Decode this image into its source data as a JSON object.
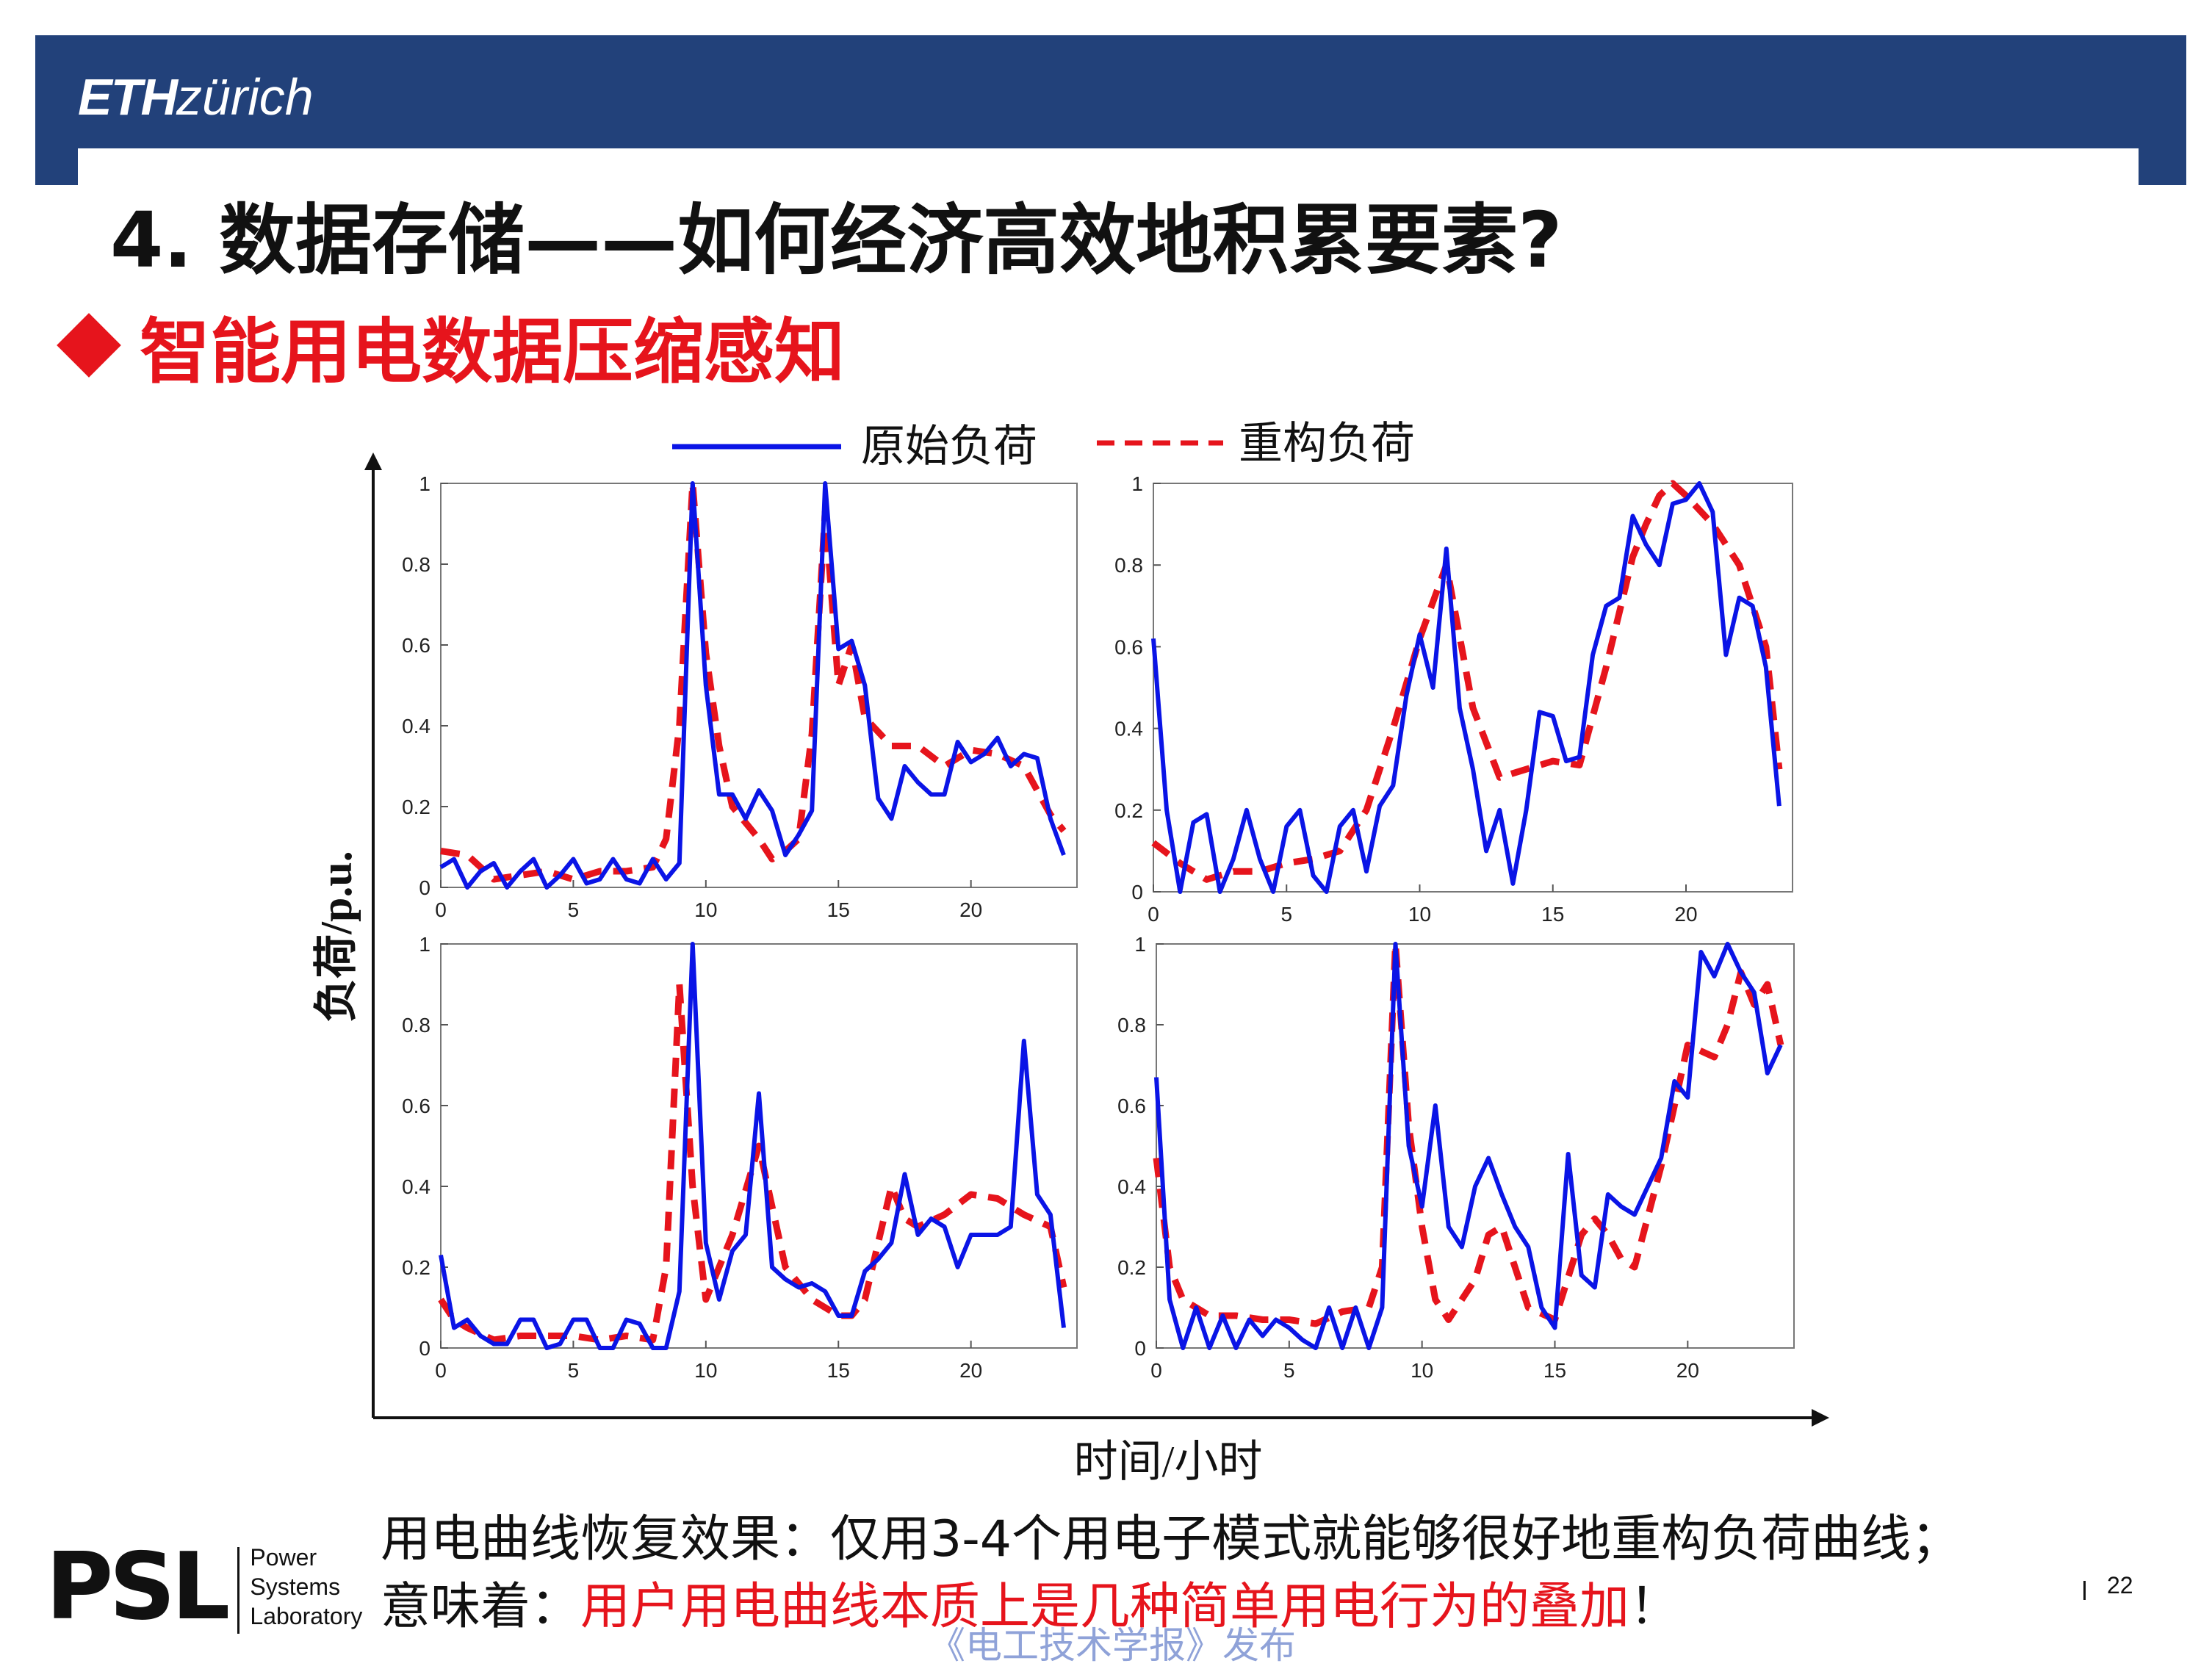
{
  "header": {
    "logo_bold": "ETH",
    "logo_rest": "zürich"
  },
  "slide": {
    "title": "4. 数据存储——如何经济高效地积累要素?",
    "bullet": "智能用电数据压缩感知",
    "page_number": "22"
  },
  "conclusion": {
    "line1": "用电曲线恢复效果：仅用3-4个用电子模式就能够很好地重构负荷曲线；",
    "line2_prefix": "意味着：",
    "line2_highlight": "用户用电曲线本质上是几种简单用电行为的叠加",
    "line2_suffix": "！"
  },
  "psl_logo": {
    "mark": "PSL",
    "line1": "Power",
    "line2": "Systems",
    "line3": "Laboratory"
  },
  "watermark": "《电工技术学报》发布",
  "colors": {
    "header_blue": "#22417a",
    "accent_red": "#e6141c",
    "original_series": "#0a14e6",
    "reconstructed_series": "#e6141c"
  },
  "chart_data": {
    "type": "line",
    "xlabel": "时间/小时",
    "ylabel": "负荷/p.u.",
    "legend": {
      "placement": "top-center",
      "entries": [
        "原始负荷",
        "重构负荷"
      ]
    },
    "grid": false,
    "panels": [
      {
        "xlim": [
          0,
          24
        ],
        "ylim": [
          0,
          1
        ],
        "xticks": [
          0,
          5,
          10,
          15,
          20
        ],
        "yticks": [
          0,
          0.2,
          0.4,
          0.6,
          0.8,
          1
        ],
        "series": [
          {
            "name": "原始负荷",
            "style": "solid",
            "x": [
              0,
              0.5,
              1,
              1.5,
              2,
              2.5,
              3,
              3.5,
              4,
              4.5,
              5,
              5.5,
              6,
              6.5,
              7,
              7.5,
              8,
              8.5,
              9,
              9.5,
              10,
              10.5,
              11,
              11.5,
              12,
              12.5,
              13,
              13.5,
              14,
              14.5,
              15,
              15.5,
              16,
              16.5,
              17,
              17.5,
              18,
              18.5,
              19,
              19.5,
              20,
              20.5,
              21,
              21.5,
              22,
              22.5,
              23,
              23.5
            ],
            "y": [
              0.05,
              0.07,
              0.0,
              0.04,
              0.06,
              0.0,
              0.04,
              0.07,
              0.0,
              0.03,
              0.07,
              0.01,
              0.02,
              0.07,
              0.02,
              0.01,
              0.07,
              0.02,
              0.06,
              1.0,
              0.5,
              0.23,
              0.23,
              0.17,
              0.24,
              0.19,
              0.08,
              0.13,
              0.19,
              1.0,
              0.59,
              0.61,
              0.5,
              0.22,
              0.17,
              0.3,
              0.26,
              0.23,
              0.23,
              0.36,
              0.31,
              0.33,
              0.37,
              0.3,
              0.33,
              0.32,
              0.17,
              0.08
            ]
          },
          {
            "name": "重构负荷",
            "style": "dashed",
            "x": [
              0,
              1,
              2,
              3,
              4,
              5,
              6,
              7,
              8,
              8.5,
              9,
              9.5,
              10,
              10.5,
              11,
              12,
              12.5,
              13,
              13.5,
              14,
              14.5,
              15,
              15.5,
              16,
              17,
              18,
              19,
              20,
              21,
              22,
              23,
              23.5
            ],
            "y": [
              0.09,
              0.08,
              0.02,
              0.03,
              0.04,
              0.02,
              0.04,
              0.04,
              0.05,
              0.12,
              0.4,
              1.0,
              0.58,
              0.35,
              0.2,
              0.12,
              0.07,
              0.09,
              0.12,
              0.38,
              0.93,
              0.5,
              0.6,
              0.42,
              0.35,
              0.35,
              0.3,
              0.34,
              0.33,
              0.3,
              0.18,
              0.14
            ]
          }
        ]
      },
      {
        "xlim": [
          0,
          24
        ],
        "ylim": [
          0,
          1
        ],
        "xticks": [
          0,
          5,
          10,
          15,
          20
        ],
        "yticks": [
          0,
          0.2,
          0.4,
          0.6,
          0.8,
          1
        ],
        "series": [
          {
            "name": "原始负荷",
            "style": "solid",
            "x": [
              0,
              0.5,
              1,
              1.5,
              2,
              2.5,
              3,
              3.5,
              4,
              4.5,
              5,
              5.5,
              6,
              6.5,
              7,
              7.5,
              8,
              8.5,
              9,
              9.5,
              10,
              10.5,
              11,
              11.5,
              12,
              12.5,
              13,
              13.5,
              14,
              14.5,
              15,
              15.5,
              16,
              16.5,
              17,
              17.5,
              18,
              18.5,
              19,
              19.5,
              20,
              20.5,
              21,
              21.5,
              22,
              22.5,
              23,
              23.5
            ],
            "y": [
              0.62,
              0.2,
              0.0,
              0.17,
              0.19,
              0.0,
              0.08,
              0.2,
              0.08,
              0.0,
              0.16,
              0.2,
              0.04,
              0.0,
              0.16,
              0.2,
              0.05,
              0.21,
              0.26,
              0.48,
              0.63,
              0.5,
              0.84,
              0.45,
              0.3,
              0.1,
              0.2,
              0.02,
              0.2,
              0.44,
              0.43,
              0.32,
              0.33,
              0.58,
              0.7,
              0.72,
              0.92,
              0.85,
              0.8,
              0.95,
              0.96,
              1.0,
              0.93,
              0.58,
              0.72,
              0.7,
              0.55,
              0.21
            ]
          },
          {
            "name": "重构负荷",
            "style": "dashed",
            "x": [
              0,
              1,
              2,
              3,
              4,
              5,
              6,
              7,
              8,
              9,
              10,
              11,
              12,
              13,
              14,
              15,
              16,
              17,
              18,
              18.5,
              19,
              19.5,
              20,
              21,
              22,
              23,
              23.5
            ],
            "y": [
              0.12,
              0.07,
              0.03,
              0.05,
              0.05,
              0.07,
              0.08,
              0.1,
              0.2,
              0.4,
              0.62,
              0.8,
              0.45,
              0.28,
              0.3,
              0.32,
              0.31,
              0.55,
              0.82,
              0.9,
              0.97,
              1.0,
              0.97,
              0.9,
              0.8,
              0.6,
              0.3
            ]
          }
        ]
      },
      {
        "xlim": [
          0,
          24
        ],
        "ylim": [
          0,
          1
        ],
        "xticks": [
          0,
          5,
          10,
          15,
          20
        ],
        "yticks": [
          0,
          0.2,
          0.4,
          0.6,
          0.8,
          1
        ],
        "series": [
          {
            "name": "原始负荷",
            "style": "solid",
            "x": [
              0,
              0.5,
              1,
              1.5,
              2,
              2.5,
              3,
              3.5,
              4,
              4.5,
              5,
              5.5,
              6,
              6.5,
              7,
              7.5,
              8,
              8.5,
              9,
              9.5,
              10,
              10.5,
              11,
              11.5,
              12,
              12.5,
              13,
              13.5,
              14,
              14.5,
              15,
              15.5,
              16,
              16.5,
              17,
              17.5,
              18,
              18.5,
              19,
              19.5,
              20,
              20.5,
              21,
              21.5,
              22,
              22.5,
              23,
              23.5
            ],
            "y": [
              0.23,
              0.05,
              0.07,
              0.03,
              0.01,
              0.01,
              0.07,
              0.07,
              0.0,
              0.01,
              0.07,
              0.07,
              0.0,
              0.0,
              0.07,
              0.06,
              0.0,
              0.0,
              0.14,
              1.0,
              0.26,
              0.12,
              0.24,
              0.28,
              0.63,
              0.2,
              0.17,
              0.15,
              0.16,
              0.14,
              0.08,
              0.08,
              0.19,
              0.22,
              0.26,
              0.43,
              0.28,
              0.32,
              0.3,
              0.2,
              0.28,
              0.28,
              0.28,
              0.3,
              0.76,
              0.38,
              0.33,
              0.05
            ]
          },
          {
            "name": "重构负荷",
            "style": "dashed",
            "x": [
              0,
              0.5,
              1,
              2,
              3,
              4,
              5,
              6,
              7,
              8,
              8.5,
              9,
              9.5,
              10,
              11,
              12,
              12.5,
              13,
              14,
              15,
              15.5,
              16,
              17,
              17.5,
              18,
              19,
              20,
              21,
              22,
              23,
              23.5
            ],
            "y": [
              0.12,
              0.07,
              0.05,
              0.02,
              0.03,
              0.03,
              0.03,
              0.02,
              0.03,
              0.02,
              0.2,
              0.9,
              0.4,
              0.12,
              0.28,
              0.5,
              0.35,
              0.2,
              0.12,
              0.08,
              0.08,
              0.12,
              0.4,
              0.32,
              0.3,
              0.33,
              0.38,
              0.37,
              0.33,
              0.3,
              0.15
            ]
          }
        ]
      },
      {
        "xlim": [
          0,
          24
        ],
        "ylim": [
          0,
          1
        ],
        "xticks": [
          0,
          5,
          10,
          15,
          20
        ],
        "yticks": [
          0,
          0.2,
          0.4,
          0.6,
          0.8,
          1
        ],
        "series": [
          {
            "name": "原始负荷",
            "style": "solid",
            "x": [
              0,
              0.5,
              1,
              1.5,
              2,
              2.5,
              3,
              3.5,
              4,
              4.5,
              5,
              5.5,
              6,
              6.5,
              7,
              7.5,
              8,
              8.5,
              9,
              9.5,
              10,
              10.5,
              11,
              11.5,
              12,
              12.5,
              13,
              13.5,
              14,
              14.5,
              15,
              15.5,
              16,
              16.5,
              17,
              17.5,
              18,
              18.5,
              19,
              19.5,
              20,
              20.5,
              21,
              21.5,
              22,
              22.5,
              23,
              23.5
            ],
            "y": [
              0.67,
              0.12,
              0.0,
              0.1,
              0.0,
              0.08,
              0.0,
              0.07,
              0.03,
              0.07,
              0.05,
              0.02,
              0.0,
              0.1,
              0.0,
              0.1,
              0.0,
              0.1,
              1.0,
              0.5,
              0.35,
              0.6,
              0.3,
              0.25,
              0.4,
              0.47,
              0.38,
              0.3,
              0.25,
              0.1,
              0.05,
              0.48,
              0.18,
              0.15,
              0.38,
              0.35,
              0.33,
              0.4,
              0.47,
              0.66,
              0.62,
              0.98,
              0.92,
              1.0,
              0.93,
              0.88,
              0.68,
              0.75
            ]
          },
          {
            "name": "重构负荷",
            "style": "dashed",
            "x": [
              0,
              0.5,
              1,
              2,
              3,
              4,
              5,
              6,
              7,
              8,
              8.5,
              9,
              9.5,
              10,
              10.5,
              11,
              12,
              12.5,
              13,
              14,
              15,
              16,
              16.5,
              17,
              17.5,
              18,
              19,
              19.5,
              20,
              21,
              21.5,
              22,
              22.5,
              23,
              23.5
            ],
            "y": [
              0.47,
              0.2,
              0.12,
              0.08,
              0.08,
              0.07,
              0.07,
              0.06,
              0.09,
              0.1,
              0.2,
              1.0,
              0.55,
              0.3,
              0.12,
              0.07,
              0.17,
              0.28,
              0.3,
              0.1,
              0.07,
              0.28,
              0.32,
              0.28,
              0.22,
              0.2,
              0.45,
              0.6,
              0.75,
              0.72,
              0.8,
              0.93,
              0.85,
              0.9,
              0.75
            ]
          }
        ]
      }
    ]
  }
}
